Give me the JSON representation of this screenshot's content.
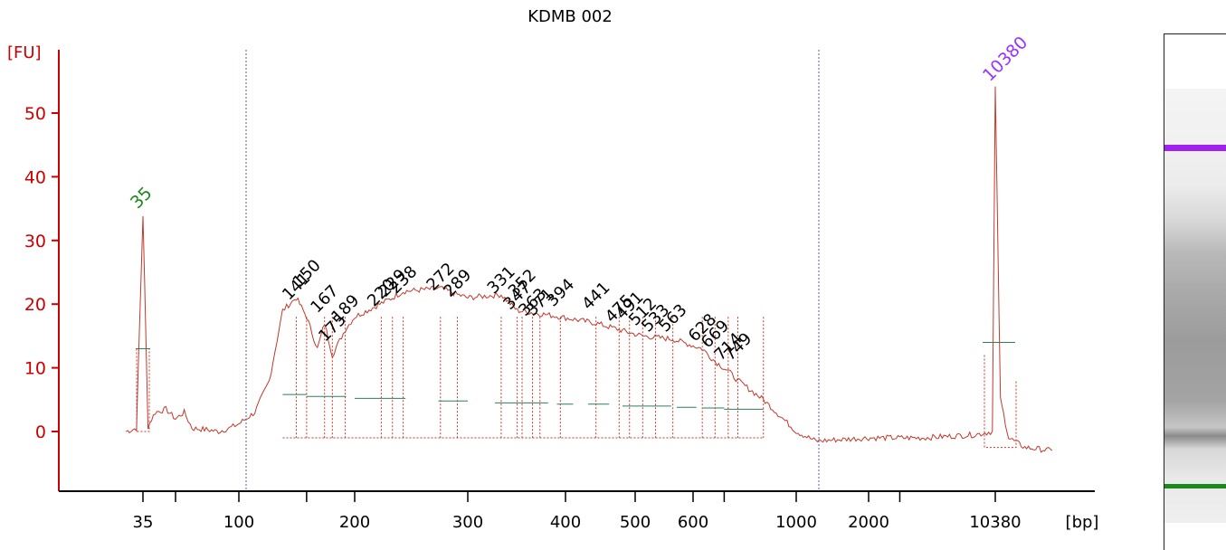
{
  "chart_data": {
    "type": "line",
    "title": "KDMB 002",
    "ylabel": "[FU]",
    "xlabel": "[bp]",
    "ylim": [
      -9,
      60
    ],
    "yticks": [
      0,
      10,
      20,
      30,
      40,
      50
    ],
    "xtick_labels": [
      "35",
      "100",
      "200",
      "300",
      "400",
      "500",
      "600",
      "1000",
      "2000",
      "10380"
    ],
    "markers": [
      {
        "label": "35",
        "value": 34,
        "color": "#1a8a1a"
      },
      {
        "label": "10380",
        "value": 54,
        "color": "#9933ff"
      }
    ],
    "series": [
      {
        "color": "#c0392b",
        "x_bp": [
          30,
          33,
          35,
          37,
          40,
          45,
          50,
          55,
          60,
          70,
          80,
          90,
          100,
          110,
          120,
          130,
          141,
          150,
          160,
          167,
          175,
          189,
          200,
          229,
          238,
          272,
          289,
          300,
          331,
          347,
          371,
          394,
          441,
          475,
          491,
          512,
          563,
          628,
          669,
          714,
          749,
          850,
          1000,
          1500,
          2000,
          4000,
          8000,
          10000,
          10380,
          10800,
          11500,
          13000,
          16000
        ],
        "y": [
          0,
          0.5,
          34,
          0.8,
          3,
          3.5,
          2,
          3,
          0.5,
          0.3,
          0,
          0.5,
          1.2,
          3,
          8,
          19,
          21,
          18,
          13,
          17,
          12,
          16,
          18,
          21,
          22,
          22.5,
          21.5,
          21,
          21.5,
          19,
          18.5,
          18,
          17,
          16,
          15.5,
          15,
          14.5,
          13,
          11,
          9.5,
          8,
          5,
          0,
          -1.5,
          -1,
          -1,
          -0.5,
          0,
          54,
          5,
          -1,
          -2.5,
          -3
        ]
      }
    ],
    "peak_labels": [
      "141",
      "150",
      "167",
      "175",
      "189",
      "220",
      "229",
      "238",
      "272",
      "289",
      "331",
      "352",
      "347",
      "363",
      "371",
      "394",
      "441",
      "475",
      "491",
      "512",
      "533",
      "563",
      "628",
      "669",
      "714",
      "749"
    ],
    "gel": {
      "upper_marker_color": "#a020f0",
      "lower_marker_color": "#1a8a1a"
    }
  }
}
